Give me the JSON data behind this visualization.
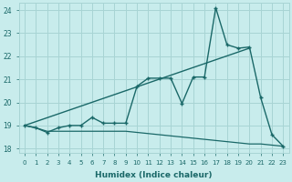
{
  "xlabel": "Humidex (Indice chaleur)",
  "ylabel": "",
  "background_color": "#c8ecec",
  "grid_color": "#a8d4d4",
  "line_color": "#1a6868",
  "xlim": [
    -0.5,
    23.5
  ],
  "ylim": [
    17.8,
    24.3
  ],
  "yticks": [
    18,
    19,
    20,
    21,
    22,
    23,
    24
  ],
  "xticks": [
    0,
    1,
    2,
    3,
    4,
    5,
    6,
    7,
    8,
    9,
    10,
    11,
    12,
    13,
    14,
    15,
    16,
    17,
    18,
    19,
    20,
    21,
    22,
    23
  ],
  "xtick_labels": [
    "0",
    "1",
    "2",
    "3",
    "4",
    "5",
    "6",
    "7",
    "8",
    "9",
    "10",
    "11",
    "12",
    "13",
    "14",
    "15",
    "16",
    "17",
    "18",
    "19",
    "20",
    "21",
    "22",
    "23"
  ],
  "data_x": [
    0,
    1,
    2,
    3,
    4,
    5,
    6,
    7,
    8,
    9,
    10,
    11,
    12,
    13,
    14,
    15,
    16,
    17,
    18,
    19,
    20,
    21,
    22,
    23
  ],
  "data_y": [
    19.0,
    18.9,
    18.7,
    18.9,
    19.0,
    19.0,
    19.35,
    19.1,
    19.1,
    19.1,
    20.7,
    21.05,
    21.05,
    21.05,
    19.95,
    21.1,
    21.1,
    24.1,
    22.5,
    22.35,
    22.4,
    20.2,
    18.6,
    18.1
  ],
  "trend_x": [
    0,
    20
  ],
  "trend_y": [
    19.0,
    22.35
  ],
  "lower_x": [
    0,
    1,
    2,
    3,
    4,
    5,
    6,
    7,
    8,
    9,
    10,
    11,
    12,
    13,
    14,
    15,
    16,
    17,
    18,
    19,
    20,
    21,
    22,
    23
  ],
  "lower_y": [
    19.0,
    18.9,
    18.75,
    18.75,
    18.75,
    18.75,
    18.75,
    18.75,
    18.75,
    18.75,
    18.7,
    18.65,
    18.6,
    18.55,
    18.5,
    18.45,
    18.4,
    18.35,
    18.3,
    18.25,
    18.2,
    18.2,
    18.15,
    18.1
  ]
}
